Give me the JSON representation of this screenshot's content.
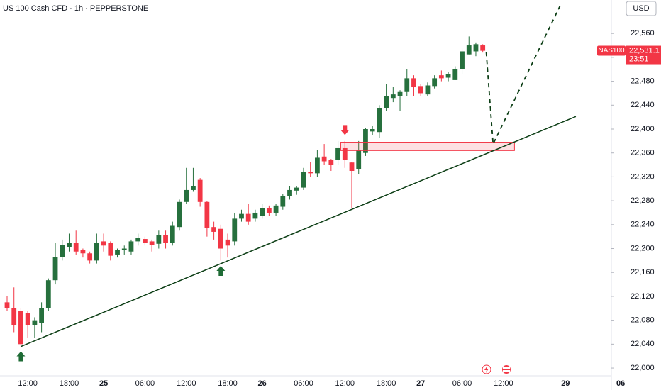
{
  "chart_data": {
    "type": "candlestick",
    "title": "US 100 Cash CFD · 1h · PEPPERSTONE",
    "currency": "USD",
    "symbol": "NAS100",
    "last_price": {
      "value": 22531.1,
      "label": "22,531.1"
    },
    "countdown": "23:51",
    "up_color": "#26703d",
    "down_color": "#f23645",
    "grid": false,
    "categories": [
      null,
      null,
      null,
      "12:00",
      null,
      null,
      null,
      null,
      null,
      "18:00",
      null,
      null,
      null,
      null,
      "25",
      null,
      null,
      null,
      null,
      null,
      "06:00",
      null,
      null,
      null,
      null,
      null,
      "12:00",
      null,
      null,
      null,
      null,
      null,
      "18:00",
      null,
      null,
      null,
      null,
      "26",
      null,
      null,
      null,
      null,
      null,
      "06:00",
      null,
      null,
      null,
      null,
      null,
      "12:00",
      null,
      null,
      null,
      null,
      null,
      "18:00",
      null,
      null,
      null,
      null,
      "27",
      null,
      null,
      null,
      null,
      null,
      "06:00",
      null,
      null,
      null,
      null,
      null,
      "12:00",
      null,
      null,
      null,
      null,
      null,
      null,
      null,
      null,
      "29",
      null,
      null,
      null,
      null,
      null,
      null,
      null,
      "06"
    ],
    "open": [
      22110,
      22100,
      22095,
      22092,
      22072,
      22075,
      22100,
      22147,
      22186,
      22203,
      22210,
      22198,
      22192,
      22180,
      22212,
      22210,
      22190,
      22198,
      22195,
      22212,
      22216,
      22212,
      22208,
      22222,
      22210,
      22236,
      22278,
      22298,
      22315,
      22278,
      22236,
      22233,
      22215,
      22212,
      22250,
      22258,
      22250,
      22255,
      22268,
      22260,
      22270,
      22288,
      22297,
      22302,
      22328,
      22326,
      22354,
      22348,
      22348,
      22368,
      22344,
      22333,
      22360,
      22396,
      22395,
      22435,
      22452,
      22455,
      22462,
      22485,
      22472,
      22458,
      22472,
      22490,
      22486,
      22482,
      22500,
      22525,
      22530,
      22540,
      null,
      null,
      null,
      null,
      null,
      null,
      null,
      null,
      null,
      null,
      null,
      null,
      null,
      null,
      null,
      null,
      null,
      null,
      null,
      null
    ],
    "high": [
      22120,
      22135,
      22100,
      22095,
      22085,
      22110,
      22150,
      22210,
      22215,
      22225,
      22230,
      22200,
      22195,
      22225,
      22225,
      22212,
      22200,
      22205,
      22215,
      22225,
      22220,
      22215,
      22230,
      22230,
      22245,
      22282,
      22335,
      22335,
      22318,
      22280,
      22245,
      22240,
      22225,
      22260,
      22265,
      22275,
      22265,
      22275,
      22272,
      22275,
      22292,
      22305,
      22305,
      22335,
      22345,
      22365,
      22375,
      22350,
      22380,
      22380,
      22345,
      22380,
      22402,
      22405,
      22440,
      22475,
      22470,
      22465,
      22500,
      22490,
      22475,
      22478,
      22490,
      22498,
      22495,
      22505,
      22535,
      22555,
      22545,
      22542,
      null,
      null,
      null,
      null,
      null,
      null,
      null,
      null,
      null,
      null,
      null,
      null,
      null,
      null,
      null,
      null,
      null,
      null,
      null,
      null
    ],
    "low": [
      22095,
      22060,
      22034,
      22050,
      22050,
      22060,
      22095,
      22140,
      22180,
      22195,
      22190,
      22185,
      22175,
      22175,
      22195,
      22180,
      22185,
      22190,
      22190,
      22205,
      22205,
      22195,
      22200,
      22200,
      22205,
      22230,
      22275,
      22295,
      22270,
      22220,
      22215,
      22180,
      22185,
      22205,
      22245,
      22240,
      22245,
      22250,
      22255,
      22255,
      22265,
      22282,
      22290,
      22298,
      22320,
      22320,
      22340,
      22330,
      22340,
      22335,
      22268,
      22325,
      22355,
      22390,
      22385,
      22430,
      22445,
      22430,
      22455,
      22455,
      22455,
      22455,
      22468,
      22480,
      22480,
      22482,
      22492,
      22525,
      22522,
      22528,
      null,
      null,
      null,
      null,
      null,
      null,
      null,
      null,
      null,
      null,
      null,
      null,
      null,
      null,
      null,
      null,
      null,
      null,
      null,
      null
    ],
    "close": [
      22100,
      22072,
      22040,
      22072,
      22080,
      22100,
      22147,
      22186,
      22206,
      22210,
      22195,
      22192,
      22180,
      22210,
      22205,
      22188,
      22198,
      22200,
      22212,
      22218,
      22210,
      22206,
      22222,
      22210,
      22238,
      22278,
      22298,
      22305,
      22278,
      22235,
      22228,
      22200,
      22205,
      22250,
      22258,
      22245,
      22260,
      22268,
      22260,
      22272,
      22288,
      22298,
      22302,
      22328,
      22326,
      22352,
      22346,
      22340,
      22368,
      22348,
      22330,
      22365,
      22400,
      22400,
      22435,
      22455,
      22458,
      22462,
      22485,
      22470,
      22460,
      22473,
      22485,
      22485,
      22492,
      22500,
      22530,
      22540,
      22542,
      22531,
      null,
      null,
      null,
      null,
      null,
      null,
      null,
      null,
      null,
      null,
      null,
      null,
      null,
      null,
      null,
      null,
      null,
      null,
      null,
      null
    ],
    "ylim": [
      21987,
      22616
    ],
    "yticks": [
      {
        "value": 22000,
        "label": "22,000"
      },
      {
        "value": 22040,
        "label": "22,040"
      },
      {
        "value": 22080,
        "label": "22,080"
      },
      {
        "value": 22120,
        "label": "22,120"
      },
      {
        "value": 22160,
        "label": "22,160"
      },
      {
        "value": 22200,
        "label": "22,200"
      },
      {
        "value": 22240,
        "label": "22,240"
      },
      {
        "value": 22280,
        "label": "22,280"
      },
      {
        "value": 22320,
        "label": "22,320"
      },
      {
        "value": 22360,
        "label": "22,360"
      },
      {
        "value": 22400,
        "label": "22,400"
      },
      {
        "value": 22440,
        "label": "22,440"
      },
      {
        "value": 22480,
        "label": "22,480"
      },
      {
        "value": 22520,
        "label": "22,520"
      },
      {
        "value": 22560,
        "label": "22,560"
      }
    ],
    "annotations": {
      "trendline": {
        "x": [
          2,
          82.5
        ],
        "y": [
          22036,
          22421
        ],
        "color": "#0b3d14"
      },
      "zone": {
        "x": [
          48.4,
          73.6
        ],
        "y": [
          22378,
          22364
        ],
        "color": "#f23645"
      },
      "projection": {
        "x": [
          69.5,
          70.5,
          80.2
        ],
        "y": [
          22529,
          22375,
          22606
        ],
        "color": "#0b3d14"
      },
      "buy_arrows": {
        "x": [
          2,
          31
        ],
        "y": [
          22028,
          22171
        ],
        "color": "#1e6b35"
      },
      "sell_arrows": {
        "x": [
          49
        ],
        "y": [
          22390
        ],
        "color": "#f23645"
      }
    }
  }
}
